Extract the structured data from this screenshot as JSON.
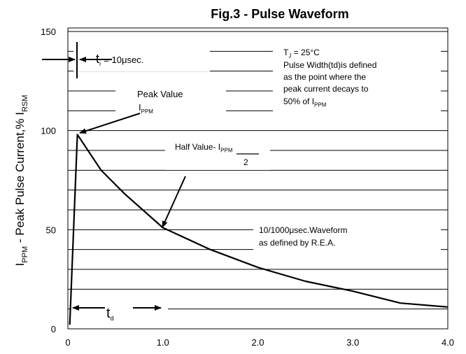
{
  "chart_data": {
    "type": "line",
    "title": "Fig.3 - Pulse Waveform",
    "y_label": [
      {
        "t": "I"
      },
      {
        "s": "PPM"
      },
      {
        "t": " - Peak Pulse Current,% I"
      },
      {
        "s": "RSM"
      }
    ],
    "x": [
      0.02,
      0.1,
      0.35,
      0.6,
      1.0,
      1.5,
      2.0,
      2.5,
      3.0,
      3.5,
      4.0
    ],
    "series": [
      {
        "color": "#000000",
        "values": [
          2,
          98,
          80,
          68,
          51,
          40,
          31,
          24,
          19,
          13,
          11
        ]
      }
    ],
    "xlim": [
      0,
      4
    ],
    "xticks": [
      0,
      {
        "value": 1,
        "label": "1.0"
      },
      {
        "value": 2,
        "label": "2.0"
      },
      {
        "value": 3,
        "label": "3.0"
      },
      {
        "value": 4,
        "label": "4.0"
      }
    ],
    "ylim": [
      0,
      150
    ],
    "yticks": [
      0,
      50,
      100,
      150
    ],
    "ygrid": [
      10,
      20,
      30,
      40,
      50,
      60,
      70,
      80,
      90,
      100,
      110,
      120,
      130,
      140,
      150
    ],
    "annotations": [
      {
        "lines": [
          [
            {
              "T": "t"
            },
            {
              "s": "r"
            },
            {
              "t": " = 10μsec."
            }
          ]
        ]
      },
      {
        "lines": [
          [
            {
              "t": "T"
            },
            {
              "s": "J"
            },
            {
              "t": " = 25°C"
            }
          ],
          [
            {
              "t": "Pulse Width(td)is defined"
            }
          ],
          [
            {
              "t": "as the point where the"
            }
          ],
          [
            {
              "t": "peak current decays to"
            }
          ],
          [
            {
              "t": "50% of I"
            },
            {
              "s": "PPM"
            }
          ]
        ]
      },
      {
        "lines": [
          [
            {
              "t": "Peak Value"
            }
          ],
          [
            {
              "t": "I"
            },
            {
              "s": "PPM"
            }
          ]
        ]
      },
      {
        "lines": [
          [
            {
              "t": "Half Value- I"
            },
            {
              "s": "PPM"
            }
          ],
          [
            {
              "t": "2"
            }
          ]
        ]
      },
      {
        "lines": [
          [
            {
              "t": "10/1000μsec.Waveform"
            }
          ],
          [
            {
              "t": "as defined by R.E.A."
            }
          ]
        ]
      },
      {
        "lines": [
          [
            {
              "T": "t"
            },
            {
              "s": "d"
            }
          ]
        ]
      }
    ]
  }
}
